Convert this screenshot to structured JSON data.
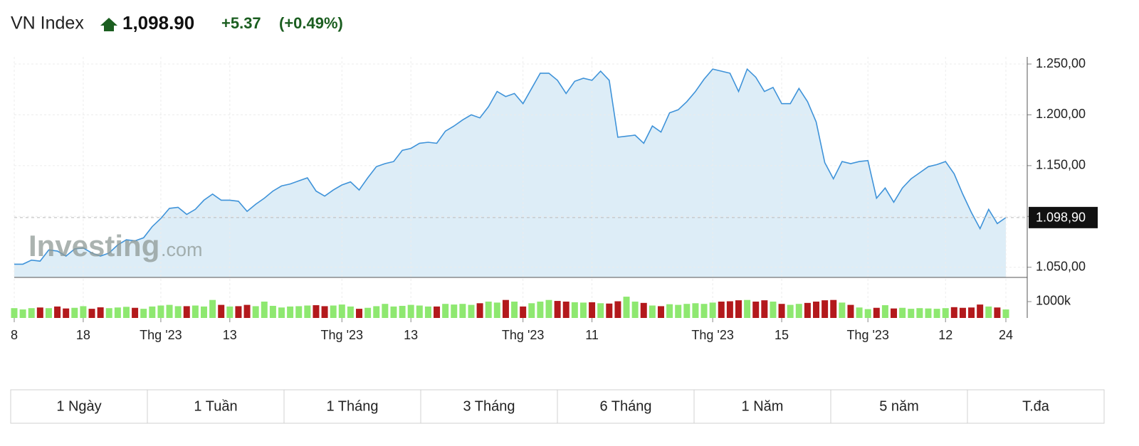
{
  "header": {
    "title": "VN Index",
    "price": "1,098.90",
    "change": "+5.37",
    "change_percent": "(+0.49%)"
  },
  "watermark": {
    "brand": "Investing",
    "suffix": ".com"
  },
  "chart_data": [
    {
      "type": "line",
      "color": "#3f93d9",
      "fill_color": "#ddedf7",
      "categories": [
        "8",
        null,
        null,
        null,
        null,
        null,
        null,
        null,
        "18",
        null,
        null,
        null,
        null,
        null,
        null,
        null,
        null,
        "Thg '23",
        null,
        null,
        null,
        null,
        null,
        null,
        null,
        "13",
        null,
        null,
        null,
        null,
        null,
        null,
        null,
        null,
        null,
        null,
        null,
        null,
        "Thg '23",
        null,
        null,
        null,
        null,
        null,
        null,
        null,
        "13",
        null,
        null,
        null,
        null,
        null,
        null,
        null,
        null,
        null,
        null,
        null,
        null,
        "Thg '23",
        null,
        null,
        null,
        null,
        null,
        null,
        null,
        "11",
        null,
        null,
        null,
        null,
        null,
        null,
        null,
        null,
        null,
        null,
        null,
        null,
        null,
        "Thg '23",
        null,
        null,
        null,
        null,
        null,
        null,
        null,
        "15",
        null,
        null,
        null,
        null,
        null,
        null,
        null,
        null,
        null,
        "Thg '23",
        null,
        null,
        null,
        null,
        null,
        null,
        null,
        null,
        "12",
        null,
        null,
        null,
        null,
        null,
        null,
        "24"
      ],
      "values": [
        1053,
        1053,
        1057,
        1056,
        1067,
        1066,
        1061,
        1068,
        1069,
        1064,
        1061,
        1064,
        1072,
        1077,
        1076,
        1079,
        1090,
        1098,
        1108,
        1109,
        1102,
        1107,
        1116,
        1122,
        1116,
        1116,
        1115,
        1105,
        1112,
        1118,
        1125,
        1130,
        1132,
        1135,
        1138,
        1125,
        1120,
        1126,
        1131,
        1134,
        1126,
        1138,
        1149,
        1152,
        1154,
        1165,
        1167,
        1172,
        1173,
        1172,
        1184,
        1189,
        1195,
        1200,
        1197,
        1208,
        1223,
        1218,
        1221,
        1211,
        1226,
        1241,
        1241,
        1234,
        1221,
        1233,
        1236,
        1234,
        1243,
        1234,
        1178,
        1179,
        1180,
        1172,
        1189,
        1183,
        1202,
        1205,
        1213,
        1223,
        1235,
        1245,
        1243,
        1241,
        1223,
        1245,
        1237,
        1223,
        1227,
        1211,
        1211,
        1226,
        1213,
        1193,
        1153,
        1137,
        1154,
        1152,
        1154,
        1155,
        1118,
        1128,
        1114,
        1128,
        1137,
        1143,
        1149,
        1151,
        1154,
        1142,
        1122,
        1104,
        1088,
        1107,
        1093,
        1098.9
      ],
      "ylim": [
        1040,
        1257
      ],
      "yticks": [
        {
          "value": 1050,
          "label": "1.050,00"
        },
        {
          "value": 1100,
          "label": "1.100,00"
        },
        {
          "value": 1150,
          "label": "1.150,00"
        },
        {
          "value": 1200,
          "label": "1.200,00"
        },
        {
          "value": 1250,
          "label": "1.250,00"
        }
      ],
      "last_price": {
        "value": 1098.9,
        "label": "1.098,90"
      },
      "grid": true
    },
    {
      "type": "bar",
      "up_color": "#8ee870",
      "down_color": "#b3191c",
      "values": [
        600,
        520,
        600,
        640,
        600,
        700,
        580,
        620,
        720,
        560,
        650,
        600,
        640,
        680,
        620,
        560,
        700,
        760,
        800,
        720,
        720,
        760,
        700,
        1100,
        800,
        700,
        720,
        800,
        720,
        1000,
        740,
        640,
        700,
        720,
        760,
        780,
        720,
        760,
        820,
        700,
        560,
        620,
        720,
        860,
        700,
        740,
        800,
        760,
        700,
        700,
        860,
        820,
        860,
        800,
        900,
        1000,
        940,
        1100,
        1000,
        700,
        900,
        1000,
        1100,
        1040,
        1000,
        960,
        940,
        960,
        900,
        880,
        1020,
        1300,
        1000,
        920,
        760,
        720,
        840,
        800,
        860,
        900,
        860,
        940,
        1000,
        1020,
        1080,
        1100,
        1000,
        1080,
        1000,
        860,
        800,
        860,
        920,
        1000,
        1080,
        1100,
        940,
        800,
        640,
        540,
        620,
        780,
        580,
        620,
        560,
        600,
        580,
        560,
        600,
        660,
        620,
        640,
        820,
        700,
        640,
        520
      ],
      "ylim": [
        0,
        2260
      ],
      "yticks": [
        {
          "value": 1000,
          "label": "1000k"
        }
      ]
    }
  ],
  "buttons": [
    "1 Ngày",
    "1 Tuần",
    "1 Tháng",
    "3 Tháng",
    "6 Tháng",
    "1 Năm",
    "5 năm",
    "T.đa"
  ]
}
